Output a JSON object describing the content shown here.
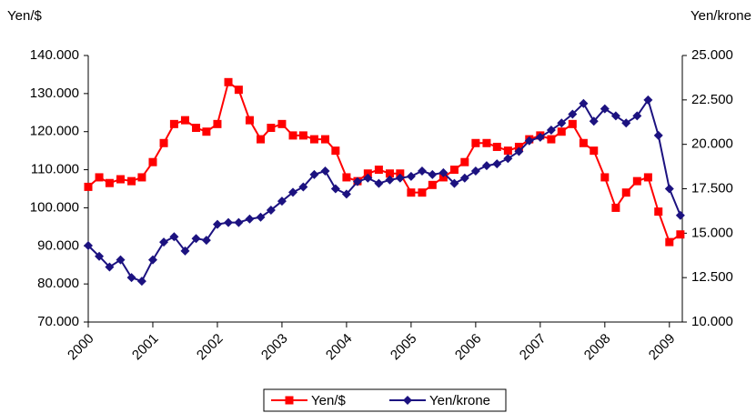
{
  "chart_data": {
    "type": "line",
    "ylabel": "Yen/$",
    "y2label": "Yen/krone",
    "x": [
      2000.0,
      2000.17,
      2000.33,
      2000.5,
      2000.67,
      2000.83,
      2001.0,
      2001.17,
      2001.33,
      2001.5,
      2001.67,
      2001.83,
      2002.0,
      2002.17,
      2002.33,
      2002.5,
      2002.67,
      2002.83,
      2003.0,
      2003.17,
      2003.33,
      2003.5,
      2003.67,
      2003.83,
      2004.0,
      2004.17,
      2004.33,
      2004.5,
      2004.67,
      2004.83,
      2005.0,
      2005.17,
      2005.33,
      2005.5,
      2005.67,
      2005.83,
      2006.0,
      2006.17,
      2006.33,
      2006.5,
      2006.67,
      2006.83,
      2007.0,
      2007.17,
      2007.33,
      2007.5,
      2007.67,
      2007.83,
      2008.0,
      2008.17,
      2008.33,
      2008.5,
      2008.67,
      2008.83,
      2009.0,
      2009.17
    ],
    "series": [
      {
        "name": "Yen/$",
        "color": "#ff0000",
        "marker": "square",
        "values": [
          105.5,
          108,
          106.5,
          107.5,
          107,
          108,
          112,
          117,
          122,
          123,
          121,
          120,
          122,
          133,
          131,
          123,
          118,
          121,
          122,
          119,
          119,
          118,
          118,
          115,
          108,
          107,
          109,
          110,
          109,
          109,
          104,
          104,
          106,
          108,
          110,
          112,
          117,
          117,
          116,
          115,
          116,
          118,
          119,
          118,
          120,
          122,
          117,
          115,
          108,
          100,
          104,
          107,
          108,
          99,
          91,
          93
        ]
      },
      {
        "name": "Yen/krone",
        "color": "#1c1280",
        "marker": "diamond",
        "axis": "y2",
        "values": [
          14.3,
          13.7,
          13.1,
          13.5,
          12.5,
          12.3,
          13.5,
          14.5,
          14.8,
          14.0,
          14.7,
          14.6,
          15.5,
          15.6,
          15.6,
          15.8,
          15.9,
          16.3,
          16.8,
          17.3,
          17.6,
          18.3,
          18.5,
          17.5,
          17.2,
          17.9,
          18.1,
          17.8,
          18.0,
          18.1,
          18.2,
          18.5,
          18.3,
          18.4,
          17.8,
          18.1,
          18.5,
          18.8,
          18.9,
          19.2,
          19.6,
          20.2,
          20.4,
          20.8,
          21.2,
          21.7,
          22.3,
          21.3,
          22.0,
          21.6,
          21.2,
          21.6,
          22.5,
          20.5,
          17.5,
          16.0
        ]
      }
    ],
    "xlim": [
      2000,
      2009.2
    ],
    "xticks": [
      2000,
      2001,
      2002,
      2003,
      2004,
      2005,
      2006,
      2007,
      2008,
      2009
    ],
    "ylim": [
      70,
      140
    ],
    "yticks": [
      {
        "value": 70,
        "label": "70.000"
      },
      {
        "value": 80,
        "label": "80.000"
      },
      {
        "value": 90,
        "label": "90.000"
      },
      {
        "value": 100,
        "label": "100.000"
      },
      {
        "value": 110,
        "label": "110.000"
      },
      {
        "value": 120,
        "label": "120.000"
      },
      {
        "value": 130,
        "label": "130.000"
      },
      {
        "value": 140,
        "label": "140.000"
      }
    ],
    "y2lim": [
      10,
      25
    ],
    "y2ticks": [
      {
        "value": 10,
        "label": "10.000"
      },
      {
        "value": 12.5,
        "label": "12.500"
      },
      {
        "value": 15,
        "label": "15.000"
      },
      {
        "value": 17.5,
        "label": "17.500"
      },
      {
        "value": 20,
        "label": "20.000"
      },
      {
        "value": 22.5,
        "label": "22.500"
      },
      {
        "value": 25,
        "label": "25.000"
      }
    ],
    "legend": "bottom"
  }
}
